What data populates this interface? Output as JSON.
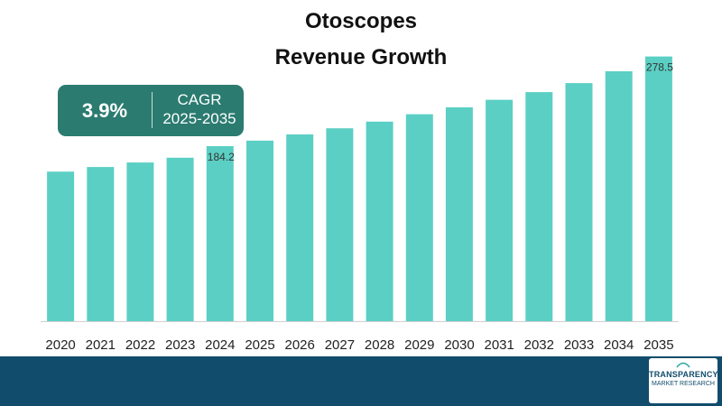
{
  "chart_data": {
    "type": "bar",
    "title": "Otoscopes",
    "subtitle": "Revenue Growth",
    "xlabel": "",
    "ylabel": "",
    "categories": [
      "2020",
      "2021",
      "2022",
      "2023",
      "2024",
      "2025",
      "2026",
      "2027",
      "2028",
      "2029",
      "2030",
      "2031",
      "2032",
      "2033",
      "2034",
      "2035"
    ],
    "values": [
      157.4,
      162.2,
      167.0,
      172.0,
      184.2,
      190.0,
      196.5,
      203.0,
      210.0,
      217.8,
      225.0,
      233.0,
      241.0,
      250.5,
      263.0,
      278.5
    ],
    "data_labels": {
      "2024": "184.2",
      "2035": "278.5"
    },
    "ylim": [
      0,
      300
    ],
    "grid": false,
    "legend": "none",
    "bar_color": "#5bcfc4"
  },
  "cagr": {
    "value": "3.9%",
    "label": "CAGR",
    "period": "2025-2035",
    "box_color": "#2b7b70"
  },
  "logo": {
    "line1": "TRANSPARENCY",
    "line2": "MARKET RESEARCH"
  },
  "footer_color": "#124c6c"
}
